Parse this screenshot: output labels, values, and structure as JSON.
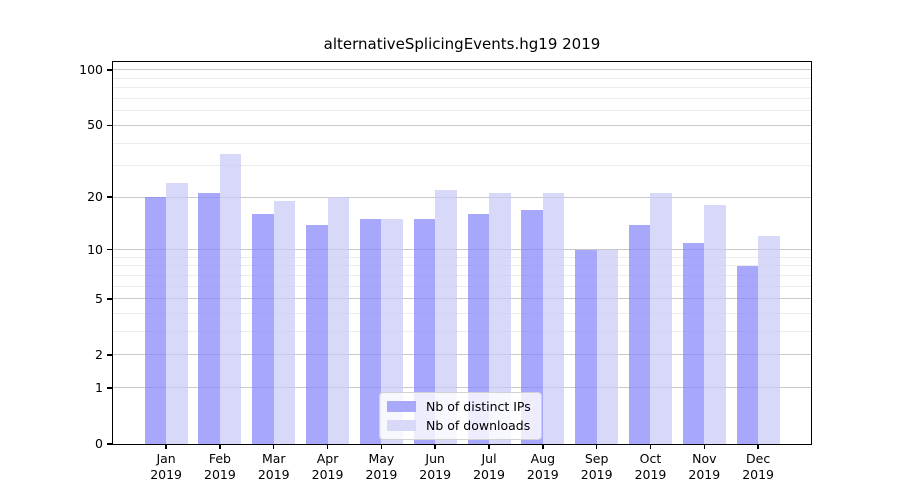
{
  "chart_data": {
    "type": "bar",
    "title": "alternativeSplicingEvents.hg19 2019",
    "months": [
      "Jan",
      "Feb",
      "Mar",
      "Apr",
      "May",
      "Jun",
      "Jul",
      "Aug",
      "Sep",
      "Oct",
      "Nov",
      "Dec"
    ],
    "year_label": "2019",
    "series": [
      {
        "name": "Nb of distinct IPs",
        "color": "#a9a9fa",
        "fill_rgba": "rgba(133,133,249,0.72)",
        "values": [
          20,
          21,
          16,
          14,
          15,
          15,
          16,
          17,
          10,
          14,
          11,
          8
        ]
      },
      {
        "name": "Nb of downloads",
        "color": "#d8d8f8",
        "fill_rgba": "rgba(201,201,245,0.72)",
        "values": [
          24,
          35,
          19,
          20,
          15,
          22,
          21,
          21,
          10,
          21,
          18,
          12
        ]
      }
    ],
    "yscale": "log1p",
    "y_major_ticks": [
      0,
      1,
      2,
      5,
      10,
      20,
      50,
      100
    ],
    "y_minor_gridlines": [
      3,
      4,
      6,
      7,
      8,
      9,
      30,
      40,
      60,
      70,
      80,
      90
    ],
    "y_top_value": 110.4,
    "grid": true,
    "legend_position": "lower center"
  },
  "colors": {
    "bar_ips": "#a9a9fa",
    "bar_downloads": "#d8d8f8",
    "grid_major": "#c9c9c9",
    "grid_minor": "#ececec",
    "spine": "#000000",
    "legend_border": "#d2d2d2"
  }
}
